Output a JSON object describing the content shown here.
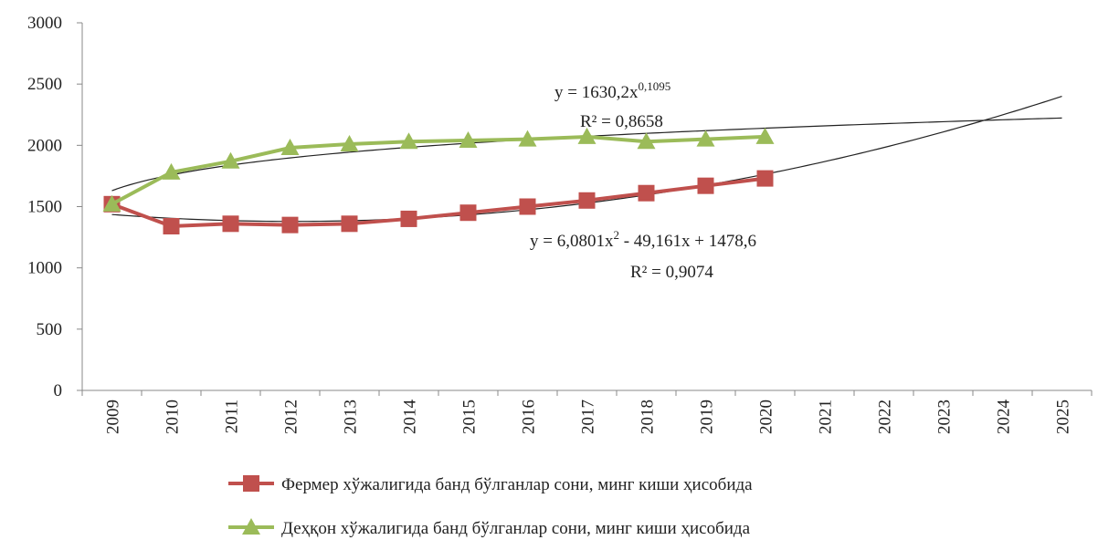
{
  "chart_data": {
    "type": "line",
    "categories": [
      "2009",
      "2010",
      "2011",
      "2012",
      "2013",
      "2014",
      "2015",
      "2016",
      "2017",
      "2018",
      "2019",
      "2020",
      "2021",
      "2022",
      "2023",
      "2024",
      "2025"
    ],
    "series": [
      {
        "name": "Фермер хўжалигида банд бўлганлар сони, минг киши ҳисобида",
        "color": "#c0504d",
        "marker": "square",
        "values": [
          1520,
          1340,
          1360,
          1350,
          1360,
          1400,
          1450,
          1500,
          1550,
          1610,
          1670,
          1730,
          null,
          null,
          null,
          null,
          null
        ],
        "trendline": {
          "kind": "poly",
          "coefficients": [
            6.0801,
            -49.161,
            1478.6
          ],
          "equation": [
            {
              "text": "y = 6,0801x"
            },
            {
              "text": "2",
              "sup": true
            },
            {
              "text": " - 49,161x + 1478,6"
            }
          ],
          "r2": "R² = 0,9074"
        }
      },
      {
        "name": "Деҳқон хўжалигида банд бўлганлар сони, минг киши ҳисобида",
        "color": "#9bbb59",
        "marker": "triangle",
        "values": [
          1520,
          1780,
          1870,
          1980,
          2010,
          2030,
          2040,
          2050,
          2070,
          2030,
          2050,
          2070,
          null,
          null,
          null,
          null,
          null
        ],
        "trendline": {
          "kind": "power",
          "coefficients": [
            1630.2,
            0.1095
          ],
          "equation": [
            {
              "text": "y = 1630,2x"
            },
            {
              "text": "0,1095",
              "sup": true
            }
          ],
          "r2": "R² = 0,8658"
        }
      }
    ],
    "ylim": [
      0,
      3000
    ],
    "yticks": [
      0,
      500,
      1000,
      1500,
      2000,
      2500,
      3000
    ],
    "grid": false,
    "legend": "bottom"
  }
}
